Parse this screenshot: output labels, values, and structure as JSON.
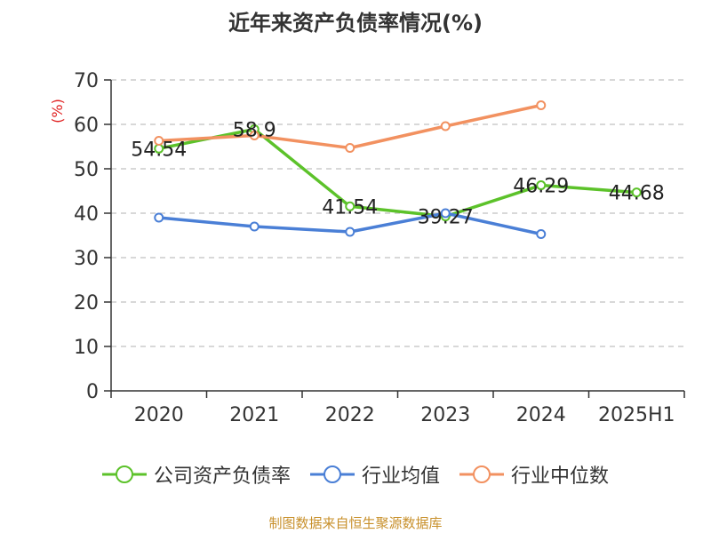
{
  "title": "近年来资产负债率情况(%)",
  "source": "制图数据来自恒生聚源数据库",
  "chart_data": {
    "type": "line",
    "title": "近年来资产负债率情况(%)",
    "ylabel": "(%)",
    "ylim": [
      0,
      70
    ],
    "yticks": [
      0,
      10,
      20,
      30,
      40,
      50,
      60,
      70
    ],
    "grid": true,
    "legend": "bottom",
    "categories": [
      "2020",
      "2021",
      "2022",
      "2023",
      "2024",
      "2025H1"
    ],
    "series": [
      {
        "name": "公司资产负债率",
        "color": "#5cc22a",
        "labels": true,
        "values": [
          54.54,
          58.9,
          41.54,
          39.27,
          46.29,
          44.68
        ]
      },
      {
        "name": "行业均值",
        "color": "#4a7fd6",
        "labels": false,
        "values": [
          39.0,
          37.0,
          35.8,
          40.0,
          35.3,
          null
        ]
      },
      {
        "name": "行业中位数",
        "color": "#f29160",
        "labels": false,
        "values": [
          56.3,
          57.5,
          54.7,
          59.6,
          64.3,
          null
        ]
      }
    ]
  }
}
